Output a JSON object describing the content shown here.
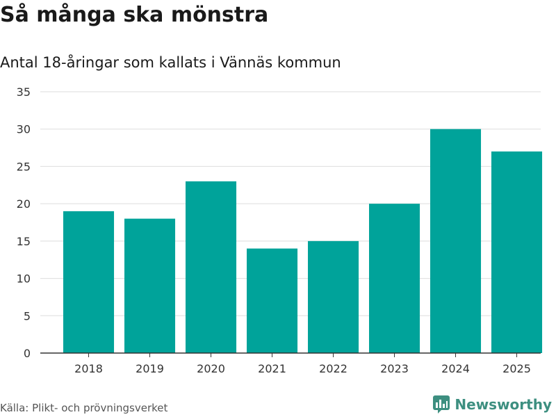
{
  "title": "Så många ska mönstra",
  "subtitle": "Antal 18-åringar som kallats i Vännäs kommun",
  "source": "Källa: Plikt- och prövningsverket",
  "brand": {
    "name": "Newsworthy",
    "icon": "newsworthy-logo-icon"
  },
  "colors": {
    "bar": "#00a39a",
    "grid": "#dddddd",
    "axis": "#333333",
    "brand": "#3d8f80"
  },
  "chart_data": {
    "type": "bar",
    "categories": [
      "2018",
      "2019",
      "2020",
      "2021",
      "2022",
      "2023",
      "2024",
      "2025"
    ],
    "values": [
      19,
      18,
      23,
      14,
      15,
      20,
      30,
      27
    ],
    "title": "Så många ska mönstra",
    "subtitle": "Antal 18-åringar som kallats i Vännäs kommun",
    "xlabel": "",
    "ylabel": "",
    "ylim": [
      0,
      35
    ],
    "yticks": [
      0,
      5,
      10,
      15,
      20,
      25,
      30,
      35
    ],
    "grid": true,
    "legend": "none"
  }
}
